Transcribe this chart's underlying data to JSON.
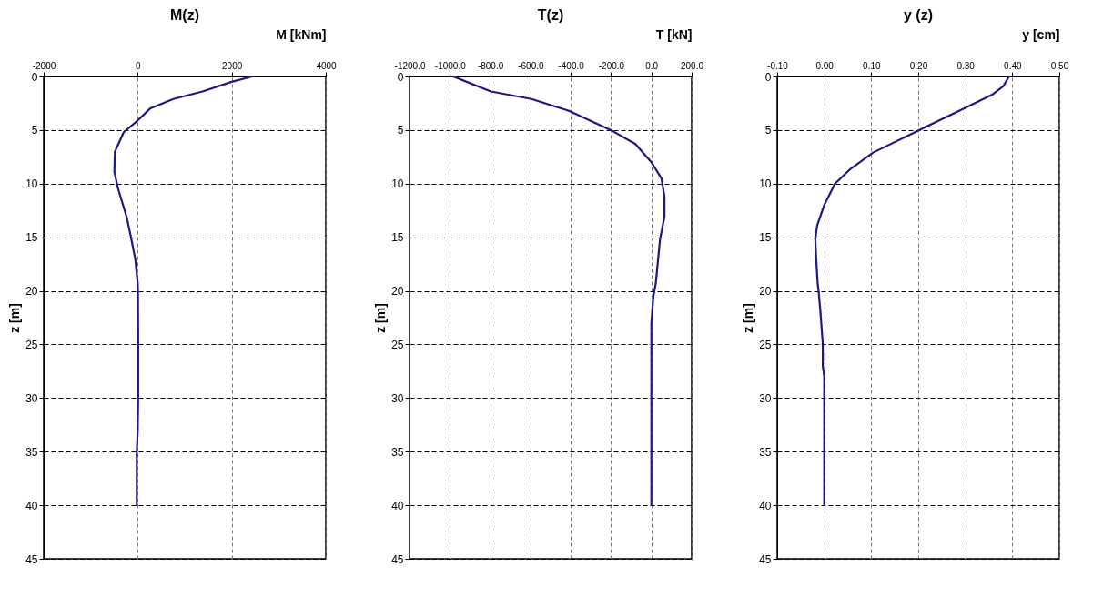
{
  "chart_data": [
    {
      "type": "line",
      "title": "M(z)",
      "xlabel": "M [kNm]",
      "ylabel": "z [m]",
      "xlim": [
        -2000,
        4000
      ],
      "xticks": [
        -2000,
        0,
        2000,
        4000
      ],
      "ylim": [
        45,
        0
      ],
      "yticks": [
        0,
        5,
        10,
        15,
        20,
        25,
        30,
        35,
        40,
        45
      ],
      "grid": true,
      "line_style": "solid",
      "series": [
        {
          "color": "#1a1a80",
          "x": [
            2435,
            2000,
            1379,
            758,
            261,
            0,
            -298,
            -484,
            -497,
            -422,
            -236,
            -143,
            -50,
            0,
            5,
            10,
            10,
            0,
            -20,
            -20
          ],
          "values": [
            0,
            0.5,
            1.4,
            2.1,
            3,
            4.1,
            5.2,
            7,
            8.9,
            10.4,
            13.1,
            15,
            17.1,
            19.3,
            20,
            25,
            30,
            33,
            35,
            40
          ]
        }
      ]
    },
    {
      "type": "line",
      "title": "T(z)",
      "xlabel": "T [kN]",
      "ylabel": "z [m]",
      "xlim": [
        -1200,
        200
      ],
      "xticks": [
        {
          "value": -1200,
          "label": "-1200.0"
        },
        {
          "value": -1000,
          "label": "-1000.0"
        },
        {
          "value": -800,
          "label": "-800.0"
        },
        {
          "value": -600,
          "label": "-600.0"
        },
        {
          "value": -400,
          "label": "-400.0"
        },
        {
          "value": -200,
          "label": "-200.0"
        },
        {
          "value": 0,
          "label": "0.0"
        },
        {
          "value": 200,
          "label": "200.0"
        }
      ],
      "ylim": [
        45,
        0
      ],
      "yticks": [
        0,
        5,
        10,
        15,
        20,
        25,
        30,
        35,
        40,
        45
      ],
      "grid": true,
      "line_style": "solid",
      "series": [
        {
          "color": "#1a1a80",
          "x": [
            -983,
            -796,
            -595,
            -409,
            -201,
            -79,
            0,
            50,
            65,
            65,
            43,
            22,
            10,
            0,
            0,
            0
          ],
          "values": [
            0,
            1.4,
            2.1,
            3.2,
            5,
            6.3,
            8,
            9.5,
            11.2,
            13.1,
            15.2,
            19.3,
            20.5,
            23,
            30,
            40
          ]
        }
      ]
    },
    {
      "type": "line",
      "title": "y (z)",
      "xlabel": "y [cm]",
      "ylabel": "z [m]",
      "xlim": [
        -0.1,
        0.5
      ],
      "xticks": [
        {
          "value": -0.1,
          "label": "-0.10"
        },
        {
          "value": 0,
          "label": "0.00"
        },
        {
          "value": 0.1,
          "label": "0.10"
        },
        {
          "value": 0.2,
          "label": "0.20"
        },
        {
          "value": 0.3,
          "label": "0.30"
        },
        {
          "value": 0.4,
          "label": "0.40"
        },
        {
          "value": 0.5,
          "label": "0.50"
        }
      ],
      "ylim": [
        45,
        0
      ],
      "yticks": [
        0,
        5,
        10,
        15,
        20,
        25,
        30,
        35,
        40,
        45
      ],
      "grid": true,
      "line_style": "solid",
      "series": [
        {
          "color": "#1a1a80",
          "x": [
            0.393,
            0.381,
            0.357,
            0.301,
            0.202,
            0.104,
            0.054,
            0.023,
            0,
            -0.015,
            -0.019,
            -0.017,
            -0.014,
            -0.012,
            -0.008,
            -0.003,
            -0.003,
            0,
            0
          ],
          "values": [
            0,
            0.9,
            1.7,
            2.9,
            5,
            7.1,
            8.7,
            10,
            12,
            13.9,
            15.2,
            17.1,
            19.3,
            20,
            22,
            25,
            27,
            28,
            40
          ]
        }
      ]
    }
  ]
}
